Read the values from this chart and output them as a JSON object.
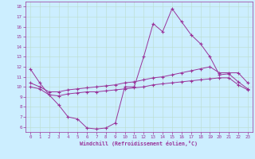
{
  "xlabel": "Windchill (Refroidissement éolien,°C)",
  "bg_color": "#cceeff",
  "grid_color": "#aaddcc",
  "line_color": "#993399",
  "ylim": [
    5.5,
    18.5
  ],
  "xlim": [
    -0.5,
    23.5
  ],
  "yticks": [
    6,
    7,
    8,
    9,
    10,
    11,
    12,
    13,
    14,
    15,
    16,
    17,
    18
  ],
  "xticks": [
    0,
    1,
    2,
    3,
    4,
    5,
    6,
    7,
    8,
    9,
    10,
    11,
    12,
    13,
    14,
    15,
    16,
    17,
    18,
    19,
    20,
    21,
    22,
    23
  ],
  "line1_x": [
    0,
    1,
    2,
    3,
    4,
    5,
    6,
    7,
    8,
    9,
    10,
    11,
    12,
    13,
    14,
    15,
    16,
    17,
    18,
    19,
    20,
    21,
    22,
    23
  ],
  "line1_y": [
    11.8,
    10.4,
    9.2,
    8.2,
    7.0,
    6.8,
    5.9,
    5.8,
    5.9,
    6.4,
    10.0,
    10.0,
    13.0,
    16.3,
    15.5,
    17.8,
    16.5,
    15.2,
    14.3,
    13.0,
    11.2,
    11.3,
    10.5,
    9.8
  ],
  "line2_x": [
    0,
    1,
    2,
    3,
    4,
    5,
    6,
    7,
    8,
    9,
    10,
    11,
    12,
    13,
    14,
    15,
    16,
    17,
    18,
    19,
    20,
    21,
    22,
    23
  ],
  "line2_y": [
    10.4,
    10.0,
    9.5,
    9.5,
    9.7,
    9.8,
    9.9,
    10.0,
    10.1,
    10.2,
    10.4,
    10.5,
    10.7,
    10.9,
    11.0,
    11.2,
    11.4,
    11.6,
    11.8,
    12.0,
    11.4,
    11.4,
    11.4,
    10.4
  ],
  "line3_x": [
    0,
    1,
    2,
    3,
    4,
    5,
    6,
    7,
    8,
    9,
    10,
    11,
    12,
    13,
    14,
    15,
    16,
    17,
    18,
    19,
    20,
    21,
    22,
    23
  ],
  "line3_y": [
    10.0,
    9.8,
    9.2,
    9.1,
    9.3,
    9.4,
    9.5,
    9.5,
    9.6,
    9.7,
    9.8,
    9.9,
    10.0,
    10.2,
    10.3,
    10.4,
    10.5,
    10.6,
    10.7,
    10.8,
    10.9,
    10.9,
    10.2,
    9.7
  ]
}
